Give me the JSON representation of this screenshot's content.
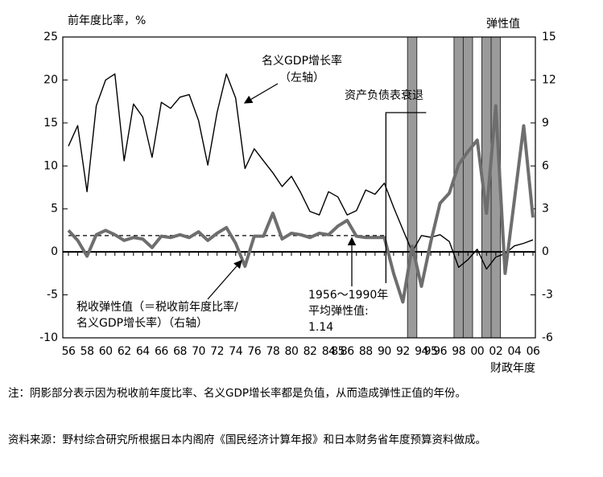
{
  "chart_data": {
    "type": "line",
    "y_label": "前年度比率，%",
    "y2_label": "弹性值",
    "x_label": "财政年度",
    "categories": [
      "56",
      null,
      "58",
      null,
      "60",
      null,
      "62",
      null,
      "64",
      null,
      "66",
      null,
      "68",
      null,
      "70",
      null,
      "72",
      null,
      "74",
      null,
      "76",
      null,
      "78",
      null,
      "80",
      null,
      "82",
      null,
      "84",
      "85",
      "86",
      null,
      "88",
      null,
      "90",
      null,
      "92",
      null,
      "94",
      "95",
      "96",
      null,
      "98",
      null,
      "00",
      null,
      "02",
      null,
      "04",
      null,
      "06"
    ],
    "series": [
      {
        "name": "名义GDP增长率",
        "name_note": [
          "（左轴）"
        ],
        "color": "#000000",
        "axis": "y",
        "values": [
          12.3,
          14.7,
          7.0,
          17.0,
          20.0,
          20.7,
          10.6,
          17.2,
          15.7,
          11.0,
          17.4,
          16.7,
          18.0,
          18.3,
          15.3,
          10.1,
          16.2,
          20.7,
          17.9,
          9.7,
          12.0,
          10.6,
          9.2,
          7.6,
          8.8,
          6.9,
          4.7,
          4.3,
          7.0,
          6.4,
          4.3,
          4.8,
          7.2,
          6.7,
          8.0,
          5.2,
          2.6,
          0.0,
          1.9,
          1.7,
          2.0,
          1.2,
          -1.8,
          -0.9,
          0.3,
          -2.0,
          -0.6,
          -0.2,
          0.7,
          1.0,
          1.4
        ]
      },
      {
        "name": "税收弹性值",
        "name_note": [
          "（＝税收前年度比率/",
          "名义GDP增长率）（右轴）"
        ],
        "color": "#6e6e6e",
        "axis": "y2",
        "values": [
          1.5,
          0.8,
          -0.3,
          1.2,
          1.5,
          1.2,
          0.8,
          1.0,
          0.9,
          0.3,
          1.1,
          1.0,
          1.2,
          1.0,
          1.4,
          0.8,
          1.3,
          1.7,
          0.6,
          -1.0,
          1.1,
          1.1,
          2.7,
          0.9,
          1.3,
          1.2,
          1.0,
          1.3,
          1.2,
          1.8,
          2.2,
          1.1,
          1.0,
          1.0,
          1.0,
          -1.5,
          -3.5,
          0.4,
          -2.4,
          0.7,
          3.4,
          4.1,
          6.1,
          7.0,
          7.8,
          2.7,
          10.2,
          -1.5,
          3.6,
          8.8,
          2.4
        ]
      }
    ],
    "shaded": [
      false,
      false,
      false,
      false,
      false,
      false,
      false,
      false,
      false,
      false,
      false,
      false,
      false,
      false,
      false,
      false,
      false,
      false,
      false,
      false,
      false,
      false,
      false,
      false,
      false,
      false,
      false,
      false,
      false,
      false,
      false,
      false,
      false,
      false,
      false,
      false,
      false,
      true,
      false,
      false,
      false,
      false,
      true,
      true,
      false,
      true,
      true,
      false,
      false,
      false,
      false
    ],
    "shaded_color": "#9a9a9a",
    "average_elasticity": 1.14,
    "average_note": [
      "1956～1990年",
      "平均弹性值:"
    ],
    "recession_label": "资产负债表衰退",
    "ylim": [
      -10,
      25
    ],
    "yticks": [
      -10,
      -5,
      0,
      5,
      10,
      15,
      20,
      25
    ],
    "y2lim": [
      -6,
      15
    ],
    "y2ticks": [
      -6,
      -3,
      0,
      3,
      6,
      9,
      12,
      15
    ]
  },
  "notes": {
    "note": "注：阴影部分表示因为税收前年度比率、名义GDP增长率都是负值，从而造成弹性正值的年份。",
    "source": "资料来源：野村综合研究所根据日本内阁府《国民经济计算年报》和日本财务省年度预算资料做成。"
  }
}
